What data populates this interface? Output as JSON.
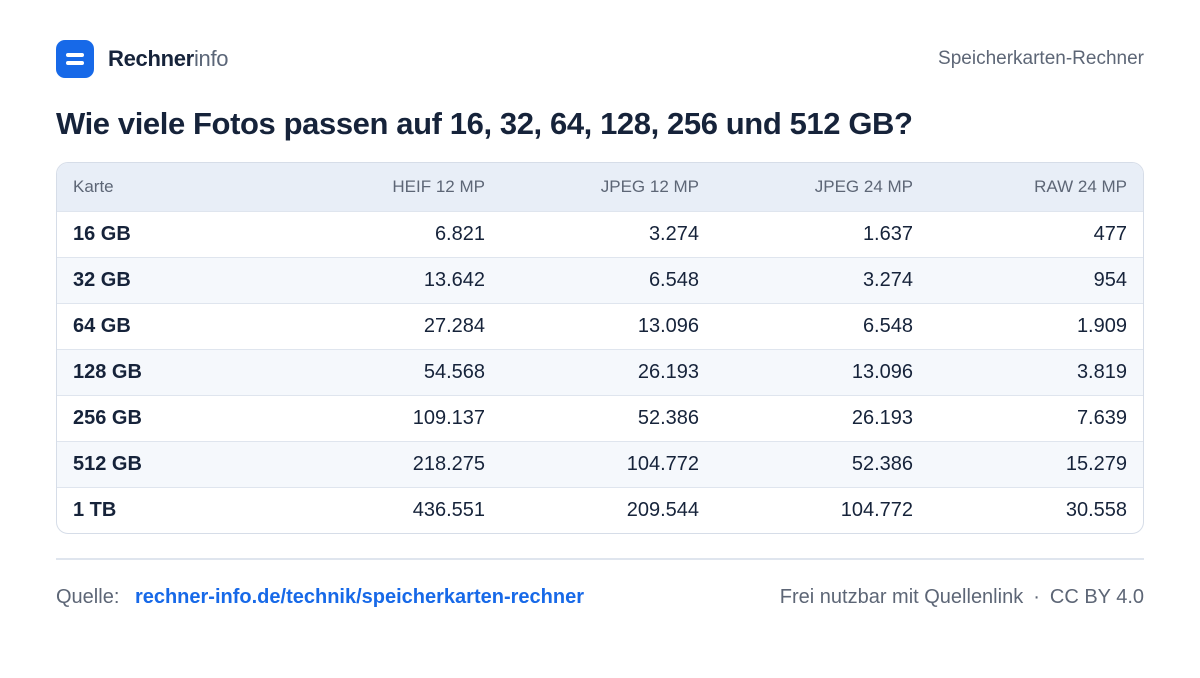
{
  "brand": {
    "name_bold": "Rechner",
    "name_light": "info"
  },
  "header": {
    "right_text": "Speicherkarten-Rechner"
  },
  "title": "Wie viele Fotos passen auf 16, 32, 64, 128, 256 und 512 GB?",
  "chart_data": {
    "type": "table",
    "columns": [
      "Karte",
      "HEIF 12 MP",
      "JPEG 12 MP",
      "JPEG 24 MP",
      "RAW 24 MP"
    ],
    "rows": [
      [
        "16 GB",
        "6.821",
        "3.274",
        "1.637",
        "477"
      ],
      [
        "32 GB",
        "13.642",
        "6.548",
        "3.274",
        "954"
      ],
      [
        "64 GB",
        "27.284",
        "13.096",
        "6.548",
        "1.909"
      ],
      [
        "128 GB",
        "54.568",
        "26.193",
        "13.096",
        "3.819"
      ],
      [
        "256 GB",
        "109.137",
        "52.386",
        "26.193",
        "7.639"
      ],
      [
        "512 GB",
        "218.275",
        "104.772",
        "52.386",
        "15.279"
      ],
      [
        "1 TB",
        "436.551",
        "209.544",
        "104.772",
        "30.558"
      ]
    ]
  },
  "footer": {
    "source_label": "Quelle:",
    "source_link": "rechner-info.de/technik/speicherkarten-rechner",
    "license_text": "Frei nutzbar mit Quellenlink",
    "separator": "·",
    "license": "CC BY 4.0"
  },
  "colors": {
    "accent": "#1769e8",
    "text": "#16233a",
    "muted": "#5d6676",
    "header_bg": "#e8eef7"
  }
}
